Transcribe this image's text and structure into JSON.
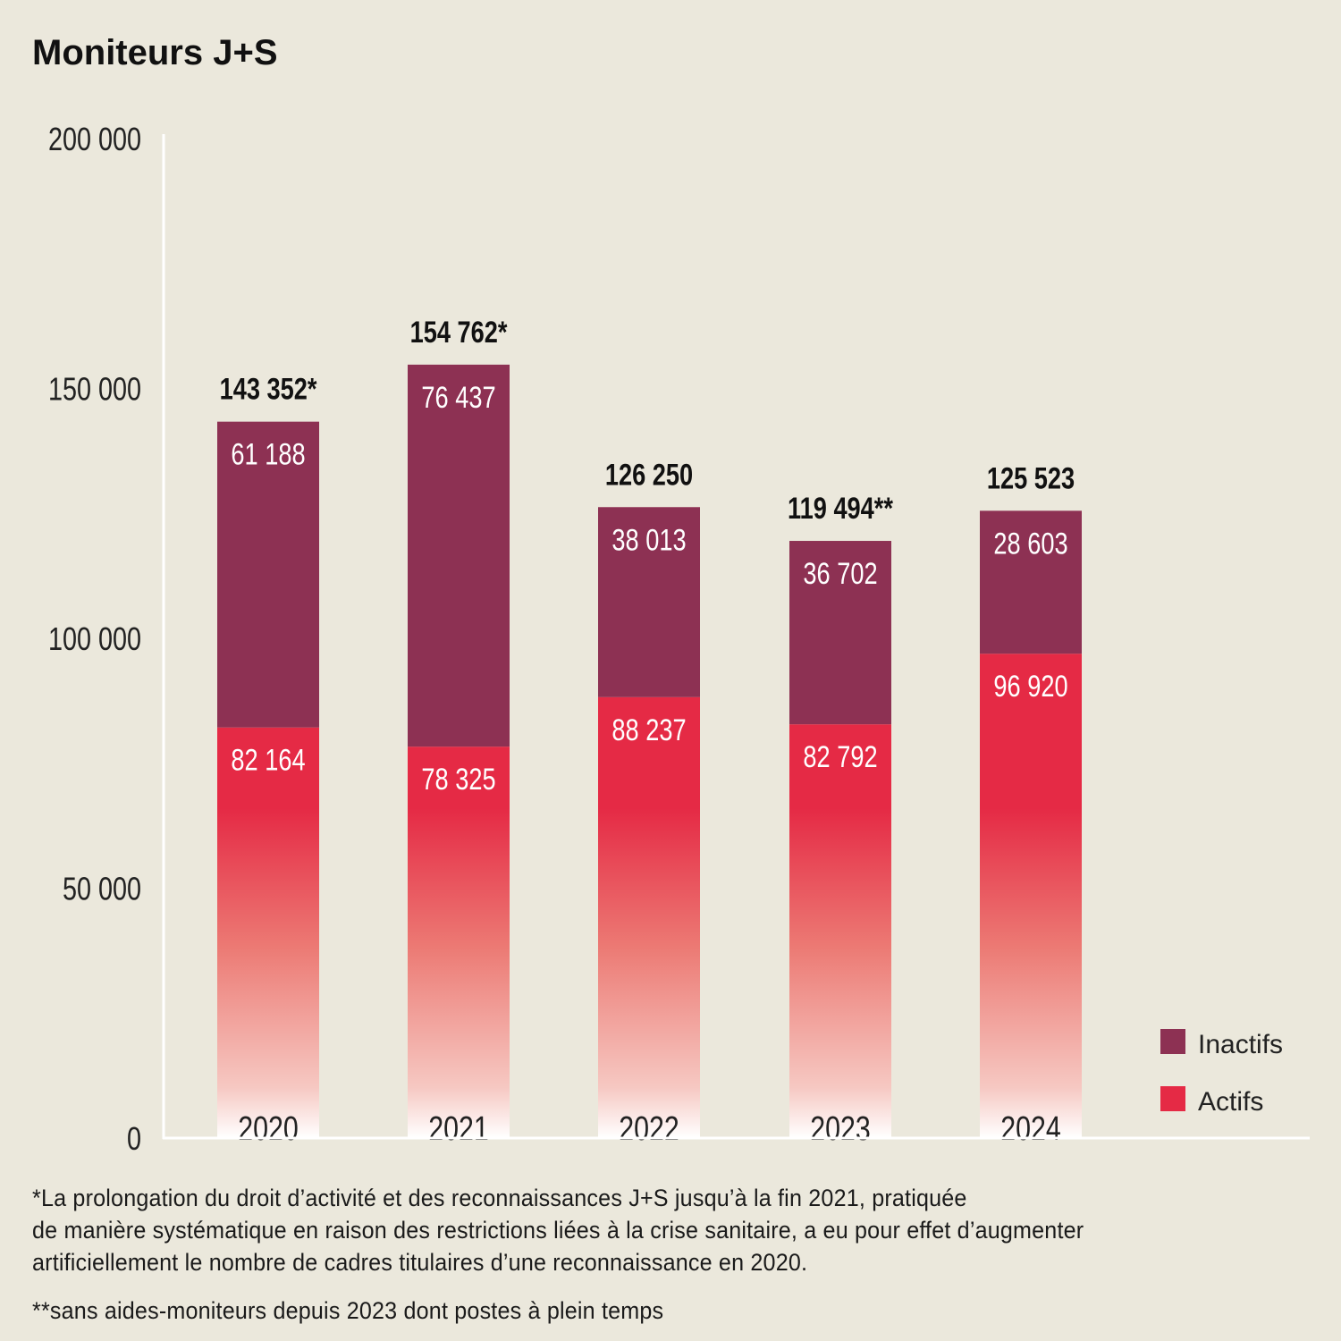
{
  "chart_data": {
    "type": "bar",
    "stacked": true,
    "title": "Moniteurs J+S",
    "categories": [
      "2020",
      "2021",
      "2022",
      "2023",
      "2024"
    ],
    "series": [
      {
        "name": "Actifs",
        "values": [
          82164,
          78325,
          88237,
          82792,
          96920
        ],
        "labels": [
          "82 164",
          "78 325",
          "88 237",
          "82 792",
          "96 920"
        ],
        "color": "#e52a45"
      },
      {
        "name": "Inactifs",
        "values": [
          61188,
          76437,
          38013,
          36702,
          28603
        ],
        "labels": [
          "61 188",
          "76 437",
          "38 013",
          "36 702",
          "28 603"
        ],
        "color": "#8d3153"
      }
    ],
    "totals": [
      143352,
      154762,
      126250,
      119494,
      125523
    ],
    "total_labels": [
      "143 352*",
      "154 762*",
      "126 250",
      "119 494**",
      "125 523"
    ],
    "ylim": [
      0,
      200000
    ],
    "yticks": [
      0,
      50000,
      100000,
      150000,
      200000
    ],
    "ytick_labels": [
      "0",
      "50 000",
      "100 000",
      "150 000",
      "200 000"
    ],
    "xlabel": "",
    "ylabel": "",
    "grid": false,
    "legend_position": "bottom-right"
  },
  "footnotes": {
    "note1_lines": [
      "*La prolongation du droit d’activité et des reconnaissances J+S jusqu’à la fin 2021, pratiquée",
      "de manière systématique en raison des restrictions liées à la crise sanitaire, a eu pour effet d’augmenter",
      "artificiellement le nombre de cadres titulaires d’une reconnaissance en 2020."
    ],
    "note2": "**sans aides-moniteurs depuis 2023 dont postes à plein temps"
  },
  "colors": {
    "background": "#ebe8dc",
    "axis": "#ffffff"
  }
}
